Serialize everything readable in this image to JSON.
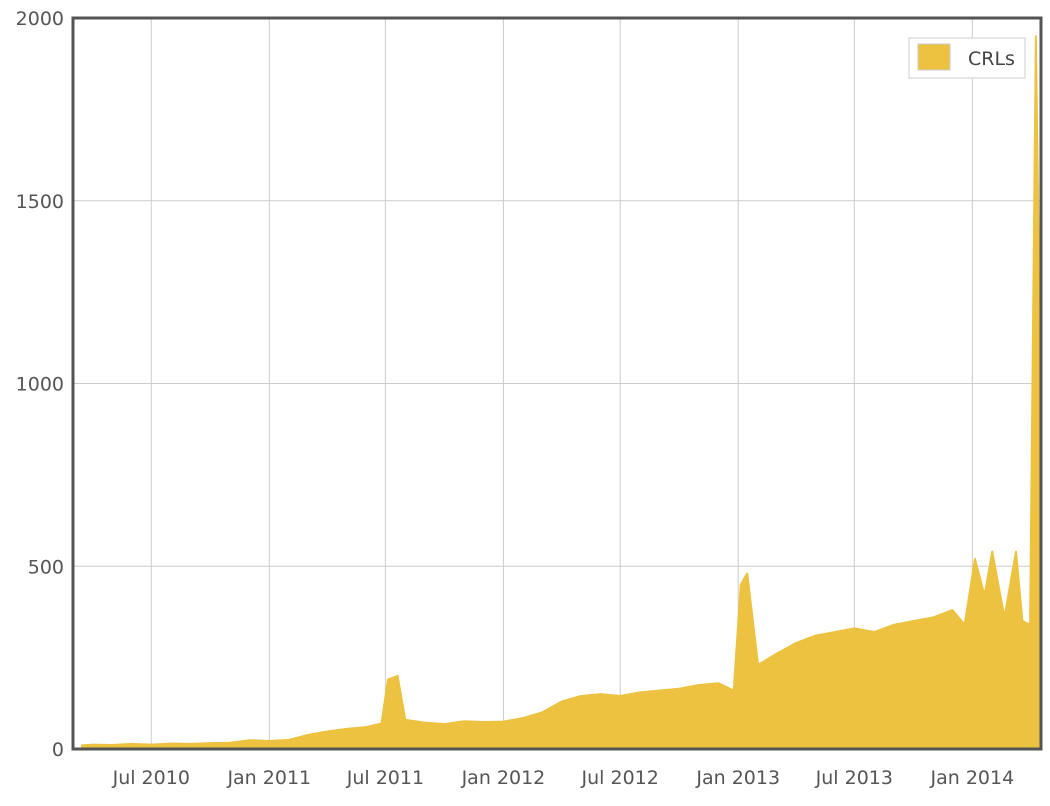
{
  "chart_data": {
    "type": "area",
    "series": [
      {
        "name": "CRLs",
        "color": "#edc240",
        "lower_color": "#e6e6e6",
        "points": [
          [
            "2010-03-15",
            10
          ],
          [
            "2010-04-01",
            12
          ],
          [
            "2010-05-01",
            11
          ],
          [
            "2010-06-01",
            14
          ],
          [
            "2010-07-01",
            12
          ],
          [
            "2010-08-01",
            15
          ],
          [
            "2010-09-01",
            14
          ],
          [
            "2010-10-01",
            16
          ],
          [
            "2010-11-01",
            17
          ],
          [
            "2010-12-01",
            24
          ],
          [
            "2011-01-01",
            22
          ],
          [
            "2011-02-01",
            25
          ],
          [
            "2011-03-01",
            38
          ],
          [
            "2011-04-01",
            48
          ],
          [
            "2011-05-01",
            55
          ],
          [
            "2011-06-01",
            60
          ],
          [
            "2011-06-25",
            70
          ],
          [
            "2011-07-05",
            190
          ],
          [
            "2011-07-20",
            200
          ],
          [
            "2011-08-01",
            80
          ],
          [
            "2011-09-01",
            72
          ],
          [
            "2011-10-01",
            68
          ],
          [
            "2011-11-01",
            76
          ],
          [
            "2011-12-01",
            74
          ],
          [
            "2012-01-01",
            75
          ],
          [
            "2012-02-01",
            85
          ],
          [
            "2012-03-01",
            100
          ],
          [
            "2012-04-01",
            130
          ],
          [
            "2012-05-01",
            145
          ],
          [
            "2012-06-01",
            150
          ],
          [
            "2012-07-01",
            145
          ],
          [
            "2012-08-01",
            155
          ],
          [
            "2012-09-01",
            160
          ],
          [
            "2012-10-01",
            165
          ],
          [
            "2012-11-01",
            175
          ],
          [
            "2012-12-01",
            180
          ],
          [
            "2012-12-25",
            160
          ],
          [
            "2013-01-05",
            450
          ],
          [
            "2013-01-15",
            480
          ],
          [
            "2013-02-01",
            230
          ],
          [
            "2013-03-01",
            260
          ],
          [
            "2013-04-01",
            290
          ],
          [
            "2013-05-01",
            310
          ],
          [
            "2013-06-01",
            320
          ],
          [
            "2013-07-01",
            330
          ],
          [
            "2013-08-01",
            320
          ],
          [
            "2013-09-01",
            340
          ],
          [
            "2013-10-01",
            350
          ],
          [
            "2013-11-01",
            360
          ],
          [
            "2013-12-01",
            380
          ],
          [
            "2013-12-20",
            340
          ],
          [
            "2014-01-05",
            520
          ],
          [
            "2014-01-20",
            420
          ],
          [
            "2014-02-01",
            540
          ],
          [
            "2014-02-20",
            360
          ],
          [
            "2014-03-10",
            540
          ],
          [
            "2014-03-20",
            350
          ],
          [
            "2014-04-01",
            340
          ],
          [
            "2014-04-10",
            1950
          ],
          [
            "2014-04-14",
            1420
          ],
          [
            "2014-04-17",
            400
          ]
        ]
      }
    ],
    "x_axis": {
      "type": "date",
      "min": "2010-03-01",
      "max": "2014-04-18",
      "ticks": [
        {
          "date": "2010-07-01",
          "label": "Jul 2010"
        },
        {
          "date": "2011-01-01",
          "label": "Jan 2011"
        },
        {
          "date": "2011-07-01",
          "label": "Jul 2011"
        },
        {
          "date": "2012-01-01",
          "label": "Jan 2012"
        },
        {
          "date": "2012-07-01",
          "label": "Jul 2012"
        },
        {
          "date": "2013-01-01",
          "label": "Jan 2013"
        },
        {
          "date": "2013-07-01",
          "label": "Jul 2013"
        },
        {
          "date": "2014-01-01",
          "label": "Jan 2014"
        }
      ]
    },
    "y_axis": {
      "min": 0,
      "max": 2000,
      "ticks": [
        0,
        500,
        1000,
        1500,
        2000
      ]
    },
    "grid": true,
    "legend": {
      "position": "top-right",
      "label": "CRLs"
    },
    "title": "",
    "xlabel": "",
    "ylabel": ""
  }
}
